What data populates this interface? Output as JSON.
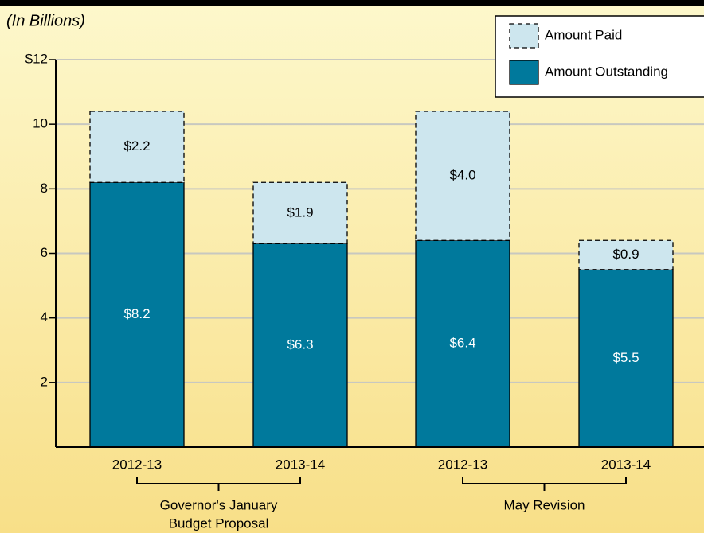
{
  "chart_data": {
    "type": "bar",
    "stacked": true,
    "subtitle": "(In Billions)",
    "categories": [
      "2012-13",
      "2013-14",
      "2012-13",
      "2013-14"
    ],
    "groups": [
      {
        "label": [
          "Governor's January",
          "Budget Proposal"
        ]
      },
      {
        "label": [
          "May Revision"
        ]
      }
    ],
    "series": [
      {
        "name": "Amount Outstanding",
        "color": "#00799c",
        "values": [
          8.2,
          6.3,
          6.4,
          5.5
        ],
        "value_labels": [
          "$8.2",
          "$6.3",
          "$6.4",
          "$5.5"
        ]
      },
      {
        "name": "Amount Paid",
        "color": "#cde6ee",
        "dashed": true,
        "values": [
          2.2,
          1.9,
          4.0,
          0.9
        ],
        "value_labels": [
          "$2.2",
          "$1.9",
          "$4.0",
          "$0.9"
        ]
      }
    ],
    "ylim": [
      0,
      12
    ],
    "yticks": [
      2,
      4,
      6,
      8,
      10,
      {
        "value": 12,
        "label": "$12"
      }
    ],
    "grid": true,
    "legend": "top-right"
  }
}
